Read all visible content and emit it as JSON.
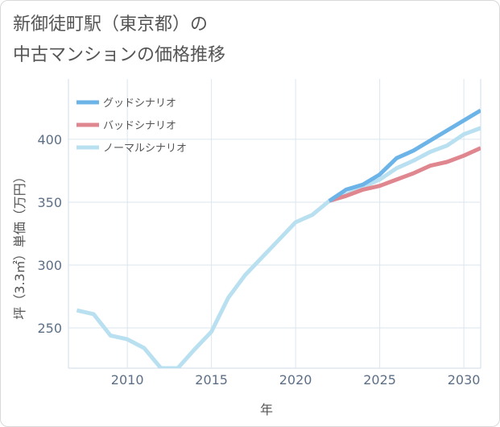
{
  "title_lines": [
    "新御徒町駅（東京都）の",
    "中古マンションの価格推移"
  ],
  "chart_data": {
    "type": "line",
    "xlabel": "年",
    "ylabel": "坪（3.3㎡）単価（万円）",
    "xlim": [
      2006.5,
      2031
    ],
    "ylim": [
      218,
      448
    ],
    "x_ticks": [
      2010,
      2015,
      2020,
      2025,
      2030
    ],
    "y_ticks": [
      250,
      300,
      350,
      400
    ],
    "grid": true,
    "legend_position": "top-left",
    "series": [
      {
        "name": "グッドシナリオ",
        "color": "#6cb4e8",
        "x": [
          2022,
          2023,
          2024,
          2025,
          2026,
          2027,
          2028,
          2029,
          2030,
          2031
        ],
        "y": [
          351,
          360,
          364,
          372,
          385,
          391,
          399,
          407,
          415,
          423
        ]
      },
      {
        "name": "バッドシナリオ",
        "color": "#e0868f",
        "x": [
          2022,
          2023,
          2024,
          2025,
          2026,
          2027,
          2028,
          2029,
          2030,
          2031
        ],
        "y": [
          351,
          355,
          360,
          363,
          368,
          373,
          379,
          382,
          387,
          393
        ]
      },
      {
        "name": "ノーマルシナリオ",
        "color": "#b9e0f0",
        "x": [
          2007,
          2008,
          2009,
          2010,
          2011,
          2012,
          2013,
          2014,
          2015,
          2016,
          2017,
          2018,
          2019,
          2020,
          2021,
          2022,
          2023,
          2024,
          2025,
          2026,
          2027,
          2028,
          2029,
          2030,
          2031
        ],
        "y": [
          264,
          261,
          244,
          241,
          234,
          218,
          218,
          233,
          247,
          274,
          292,
          306,
          320,
          334,
          340,
          351,
          356,
          362,
          368,
          377,
          383,
          390,
          395,
          404,
          409
        ]
      }
    ]
  }
}
